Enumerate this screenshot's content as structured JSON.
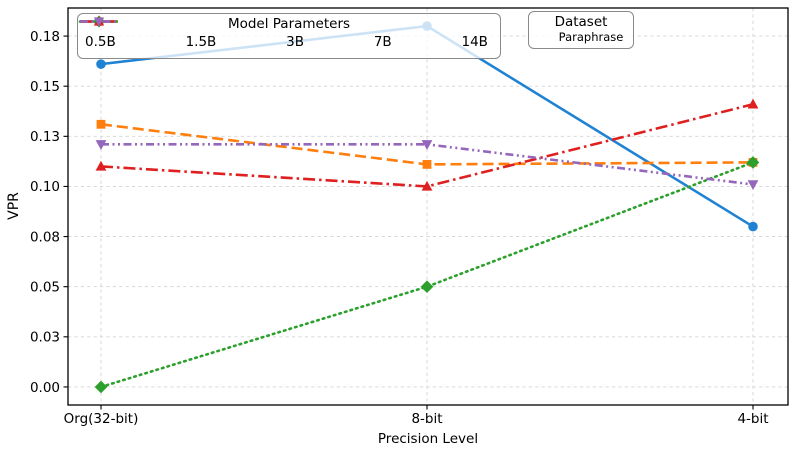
{
  "chart_data": {
    "type": "line",
    "title": "",
    "xlabel": "Precision Level",
    "ylabel": "VPR",
    "categories": [
      "Org(32-bit)",
      "8-bit",
      "4-bit"
    ],
    "yticks": {
      "values": [
        0.0,
        0.025,
        0.05,
        0.075,
        0.1,
        0.125,
        0.15,
        0.175
      ],
      "labels": [
        "0.00",
        "0.03",
        "0.05",
        "0.08",
        "0.10",
        "0.13",
        "0.15",
        "0.18"
      ]
    },
    "ylim": [
      -0.009,
      0.189
    ],
    "grid": "both-axes dashed light-gray",
    "legend": {
      "title": "Model Parameters",
      "position": "upper left"
    },
    "annotation_box": {
      "title": "Dataset",
      "label": "Paraphrase",
      "position": "upper right"
    },
    "series": [
      {
        "name": "0.5B",
        "color": "#1f82d2",
        "linestyle": "solid",
        "marker": "circle",
        "values": [
          0.161,
          0.18,
          0.08
        ]
      },
      {
        "name": "1.5B",
        "color": "#ff7f0e",
        "linestyle": "dashed",
        "marker": "square",
        "values": [
          0.131,
          0.111,
          0.112
        ]
      },
      {
        "name": "3B",
        "color": "#2ca02c",
        "linestyle": "dotted",
        "marker": "diamond",
        "values": [
          0.0,
          0.05,
          0.112
        ]
      },
      {
        "name": "7B",
        "color": "#df2020",
        "linestyle": "dashdot",
        "marker": "triangle-up",
        "values": [
          0.11,
          0.1,
          0.141
        ]
      },
      {
        "name": "14B",
        "color": "#9467bd",
        "linestyle": "dashdotdot",
        "marker": "triangle-down",
        "values": [
          0.121,
          0.121,
          0.101
        ]
      }
    ]
  }
}
